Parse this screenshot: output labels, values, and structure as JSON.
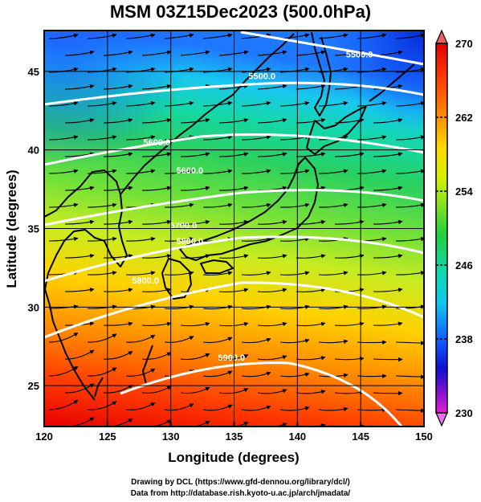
{
  "title": "MSM 03Z15Dec2023 (500.0hPa)",
  "map": {
    "lon_range": [
      120,
      150
    ],
    "lat_range": [
      22.4,
      47.6
    ],
    "x_ticks": [
      "120",
      "125",
      "130",
      "135",
      "140",
      "145",
      "150"
    ],
    "y_ticks": [
      "25",
      "30",
      "35",
      "40",
      "45"
    ],
    "xlabel": "Longitude (degrees)",
    "ylabel": "Latitude  (degrees)",
    "grid": true,
    "field": "temperature shading with wind streamlines (arrows toward the east-northeast)",
    "contour_labels": [
      {
        "text": "5500.0",
        "lon": 144.9,
        "lat": 45.9
      },
      {
        "text": "5500.0",
        "lon": 137.2,
        "lat": 44.5
      },
      {
        "text": "5600.0",
        "lon": 128.9,
        "lat": 40.3
      },
      {
        "text": "5600.0",
        "lon": 131.5,
        "lat": 38.5
      },
      {
        "text": "5700.0",
        "lon": 131.0,
        "lat": 35.0
      },
      {
        "text": "5800.0",
        "lon": 128.0,
        "lat": 31.5
      },
      {
        "text": "5800.0",
        "lon": 131.5,
        "lat": 34.0
      },
      {
        "text": "5900.0",
        "lon": 134.8,
        "lat": 26.6
      }
    ]
  },
  "colorbar": {
    "ticks": [
      "270",
      "262",
      "254",
      "246",
      "238",
      "230"
    ],
    "min": 230,
    "max": 270,
    "arrow_top_color": "#e86060",
    "arrow_bottom_color": "#f070f0"
  },
  "credits": {
    "line1": "Drawing by DCL (https://www.gfd-dennou.org/library/dcl/)",
    "line2": "Data from http://database.rish.kyoto-u.ac.jp/arch/jmadata/"
  }
}
